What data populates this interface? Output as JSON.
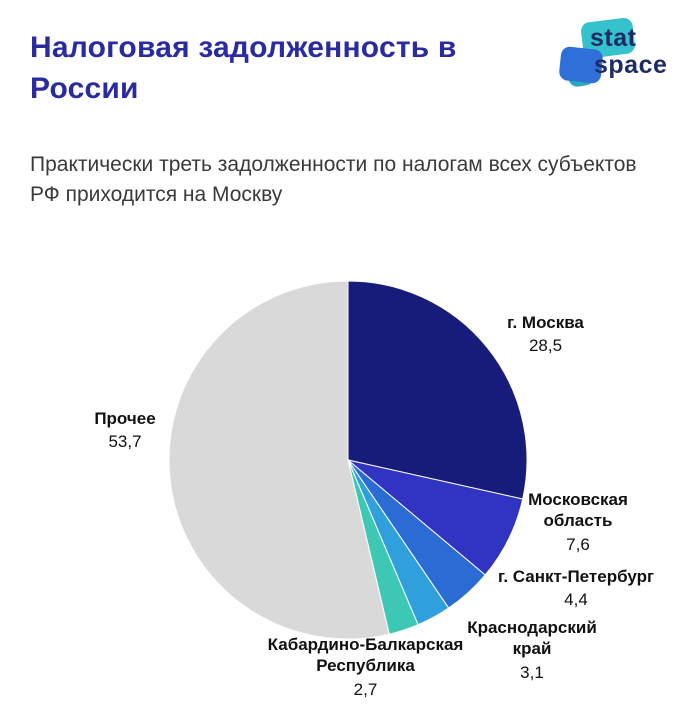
{
  "header": {
    "title": "Налоговая задолженность в России",
    "subtitle": "Практически треть задолженности по налогам всех субъектов РФ приходится на Москву"
  },
  "logo": {
    "line1": "stat",
    "line2": "space",
    "text_color": "#1d2b66",
    "teal_color": "#35c2cc",
    "blue_color": "#2f6fd8"
  },
  "chart_data": {
    "type": "pie",
    "title": "Налоговая задолженность в России",
    "unit": "percent",
    "direction": "clockwise",
    "start_angle_deg": 0,
    "legend_position": "labels-around-pie",
    "slices": [
      {
        "label": "г. Москва",
        "value": 28.5,
        "value_label": "28,5",
        "color": "#171c7b"
      },
      {
        "label": "Московская область",
        "value": 7.6,
        "value_label": "7,6",
        "color": "#3134c2"
      },
      {
        "label": "г. Санкт-Петербург",
        "value": 4.4,
        "value_label": "4,4",
        "color": "#2b6cd4"
      },
      {
        "label": "Краснодарский край",
        "value": 3.1,
        "value_label": "3,1",
        "color": "#2fa0dc"
      },
      {
        "label": "Кабардино-Балкарская Республика",
        "value": 2.7,
        "value_label": "2,7",
        "color": "#3dc7b5"
      },
      {
        "label": "Прочее",
        "value": 53.7,
        "value_label": "53,7",
        "color": "#d9d9d9"
      }
    ]
  }
}
